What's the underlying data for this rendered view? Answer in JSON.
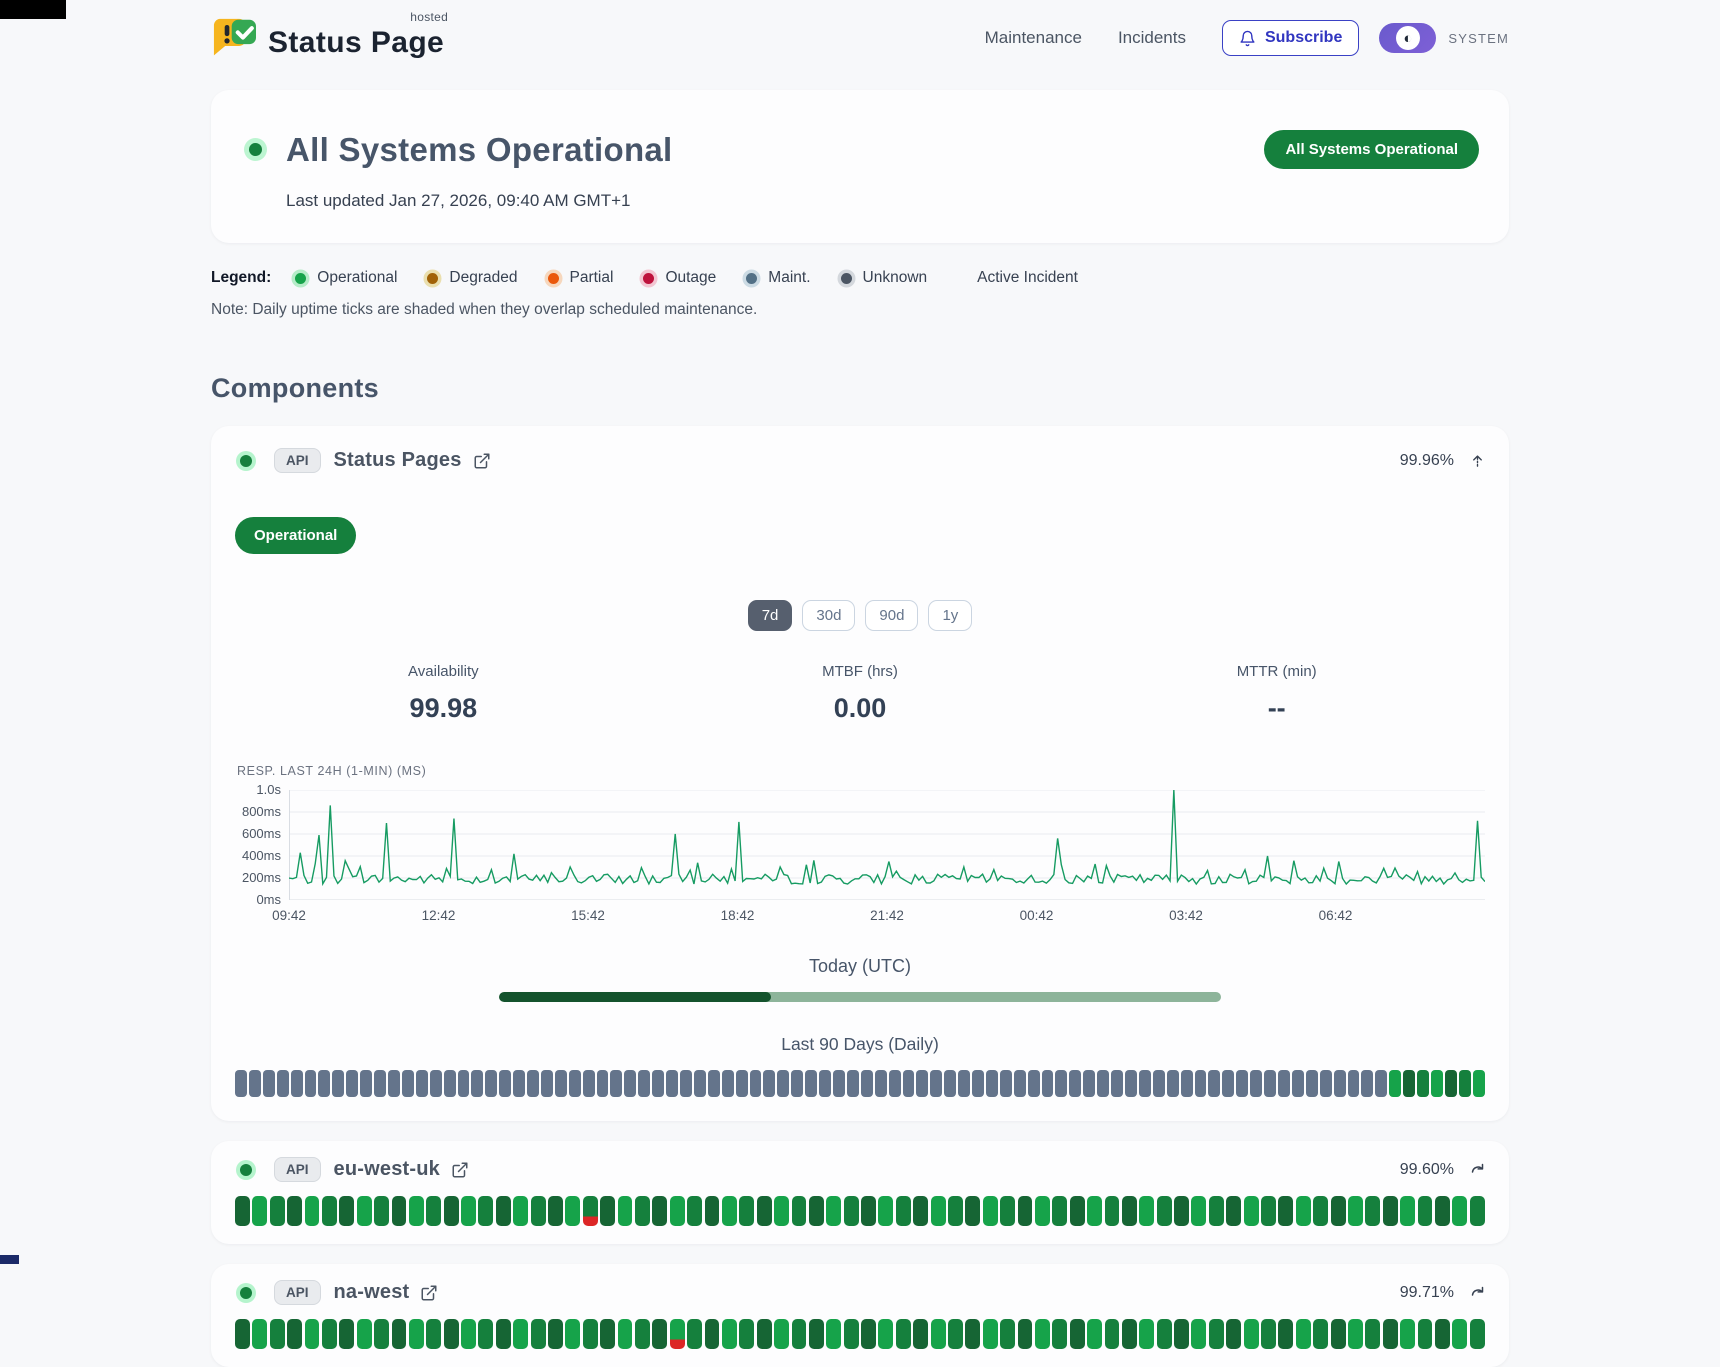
{
  "header": {
    "logo_title": "Status Page",
    "logo_superscript": "hosted",
    "nav": [
      {
        "label": "Maintenance"
      },
      {
        "label": "Incidents"
      }
    ],
    "subscribe_label": "Subscribe",
    "theme_toggle_label": "SYSTEM"
  },
  "hero": {
    "title": "All Systems Operational",
    "last_updated": "Last updated Jan 27, 2026, 09:40 AM GMT+1",
    "badge_label": "All Systems Operational"
  },
  "legend": {
    "label": "Legend:",
    "items": [
      {
        "label": "Operational",
        "color": "#16a34a",
        "ring": "#b5ecc8"
      },
      {
        "label": "Degraded",
        "color": "#a16207",
        "ring": "#eadfae"
      },
      {
        "label": "Partial",
        "color": "#ea580c",
        "ring": "#f6d7bd"
      },
      {
        "label": "Outage",
        "color": "#be123c",
        "ring": "#f3c6d2"
      },
      {
        "label": "Maint.",
        "color": "#527086",
        "ring": "#ccdbe4"
      },
      {
        "label": "Unknown",
        "color": "#4b5563",
        "ring": "#d4d8dd"
      }
    ],
    "active_incident_label": "Active Incident",
    "note": "Note: Daily uptime ticks are shaded when they overlap scheduled maintenance."
  },
  "components": {
    "heading": "Components",
    "primary": {
      "status": "operational",
      "tag": "API",
      "name": "Status Pages",
      "uptime": "99.96%",
      "badge": "Operational",
      "ranges": [
        {
          "label": "7d",
          "active": true
        },
        {
          "label": "30d",
          "active": false
        },
        {
          "label": "90d",
          "active": false
        },
        {
          "label": "1y",
          "active": false
        }
      ],
      "stats": [
        {
          "label": "Availability",
          "value": "99.98"
        },
        {
          "label": "MTBF (hrs)",
          "value": "0.00"
        },
        {
          "label": "MTTR (min)",
          "value": "--"
        }
      ],
      "today": {
        "label": "Today (UTC)",
        "filled_pct": 37.7,
        "bar_color": "#14532d",
        "track_color": "#8db49a"
      },
      "history": {
        "label": "Last 90 Days (Daily)",
        "total": 90,
        "unknown_count": 83,
        "operational_count": 7,
        "unknown_color": "#64748b",
        "operational_colors": [
          "#166534",
          "#16a34a",
          "#15803d"
        ]
      }
    },
    "rows": [
      {
        "status": "operational",
        "tag": "API",
        "name": "eu-west-uk",
        "uptime": "99.60%",
        "ticks": {
          "total": 72,
          "colors": [
            "#15803d",
            "#166534",
            "#16a34a"
          ],
          "partial_index": 20,
          "partial_color": "#dc2626"
        }
      },
      {
        "status": "operational",
        "tag": "API",
        "name": "na-west",
        "uptime": "99.71%",
        "ticks": {
          "total": 72,
          "colors": [
            "#15803d",
            "#166534",
            "#16a34a"
          ],
          "partial_index": 25,
          "partial_color": "#dc2626"
        }
      }
    ]
  },
  "chart_data": {
    "type": "line",
    "title": "RESP. LAST 24H (1-MIN) (MS)",
    "color": "#169b62",
    "ylim": [
      0,
      1000
    ],
    "grid": true,
    "legend_position": "none",
    "y_ticks": [
      {
        "label": "1.0s",
        "value": 1000
      },
      {
        "label": "800ms",
        "value": 800
      },
      {
        "label": "600ms",
        "value": 600
      },
      {
        "label": "400ms",
        "value": 400
      },
      {
        "label": "200ms",
        "value": 200
      },
      {
        "label": "0ms",
        "value": 0
      }
    ],
    "x_ticks": [
      "09:42",
      "12:42",
      "15:42",
      "18:42",
      "21:42",
      "00:42",
      "03:42",
      "06:42"
    ],
    "points": 320,
    "baseline_ms": [
      145,
      235
    ],
    "spikes": [
      [
        3,
        430
      ],
      [
        8,
        590
      ],
      [
        11,
        860
      ],
      [
        26,
        700
      ],
      [
        44,
        740
      ],
      [
        60,
        420
      ],
      [
        75,
        300
      ],
      [
        103,
        600
      ],
      [
        120,
        710
      ],
      [
        131,
        300
      ],
      [
        140,
        360
      ],
      [
        160,
        350
      ],
      [
        180,
        300
      ],
      [
        205,
        560
      ],
      [
        236,
        1000
      ],
      [
        261,
        400
      ],
      [
        280,
        350
      ],
      [
        295,
        290
      ],
      [
        317,
        720
      ]
    ]
  }
}
